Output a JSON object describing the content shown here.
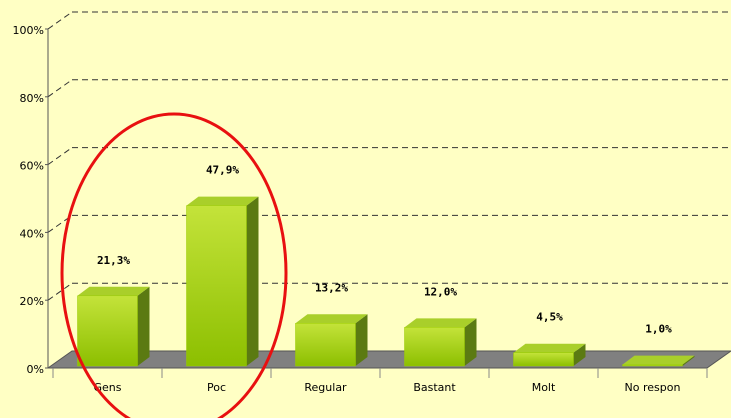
{
  "chart_data": {
    "type": "bar",
    "categories": [
      "Gens",
      "Poc",
      "Regular",
      "Bastant",
      "Molt",
      "No respon"
    ],
    "values": [
      21.3,
      47.9,
      13.2,
      12.0,
      4.5,
      1.0
    ],
    "value_labels": [
      "21,3%",
      "47,9%",
      "13,2%",
      "12,0%",
      "4,5%",
      "1,0%"
    ],
    "color": "#99cc00",
    "ylim": [
      0,
      100
    ],
    "yticks": [
      {
        "value": 0,
        "label": "0%"
      },
      {
        "value": 20,
        "label": "20%"
      },
      {
        "value": 40,
        "label": "40%"
      },
      {
        "value": 60,
        "label": "60%"
      },
      {
        "value": 80,
        "label": "80%"
      },
      {
        "value": 100,
        "label": "100%"
      }
    ],
    "grid": true
  }
}
